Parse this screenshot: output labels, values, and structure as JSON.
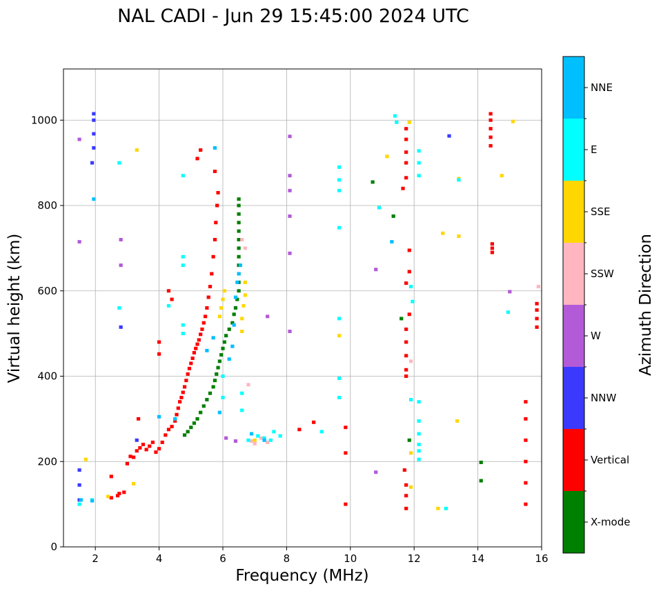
{
  "chart_data": {
    "type": "scatter",
    "title": "NAL CADI - Jun 29 15:45:00 2024 UTC",
    "xlabel": "Frequency (MHz)",
    "ylabel": "Virtual height (km)",
    "xlim": [
      1,
      16
    ],
    "ylim": [
      0,
      1120
    ],
    "xticks": [
      2,
      4,
      6,
      8,
      10,
      12,
      14,
      16
    ],
    "yticks": [
      0,
      200,
      400,
      600,
      800,
      1000
    ],
    "grid": true,
    "colorbar": {
      "label": "Azimuth Direction",
      "categories": [
        {
          "name": "X-mode",
          "color": "#008000"
        },
        {
          "name": "Vertical",
          "color": "#ff0000"
        },
        {
          "name": "NNW",
          "color": "#3a3aff"
        },
        {
          "name": "W",
          "color": "#b35ad8"
        },
        {
          "name": "SSW",
          "color": "#ffb6c1"
        },
        {
          "name": "SSE",
          "color": "#ffd700"
        },
        {
          "name": "E",
          "color": "#00ffff"
        },
        {
          "name": "NNE",
          "color": "#00bfff"
        }
      ]
    },
    "series": [
      {
        "name": "Vertical",
        "points": [
          [
            3.2,
            210
          ],
          [
            3.3,
            225
          ],
          [
            3.4,
            232
          ],
          [
            3.5,
            240
          ],
          [
            3.6,
            228
          ],
          [
            3.7,
            236
          ],
          [
            3.8,
            245
          ],
          [
            3.9,
            222
          ],
          [
            4.0,
            230
          ],
          [
            4.1,
            245
          ],
          [
            4.2,
            262
          ],
          [
            4.3,
            275
          ],
          [
            4.4,
            282
          ],
          [
            4.5,
            295
          ],
          [
            4.55,
            310
          ],
          [
            4.6,
            325
          ],
          [
            4.65,
            340
          ],
          [
            4.7,
            350
          ],
          [
            4.75,
            362
          ],
          [
            4.8,
            375
          ],
          [
            4.85,
            390
          ],
          [
            4.9,
            405
          ],
          [
            4.95,
            418
          ],
          [
            5.0,
            430
          ],
          [
            5.05,
            442
          ],
          [
            5.1,
            455
          ],
          [
            5.15,
            465
          ],
          [
            5.2,
            475
          ],
          [
            5.25,
            485
          ],
          [
            5.3,
            498
          ],
          [
            5.35,
            510
          ],
          [
            5.4,
            525
          ],
          [
            5.45,
            540
          ],
          [
            5.5,
            560
          ],
          [
            5.55,
            585
          ],
          [
            5.6,
            610
          ],
          [
            5.65,
            640
          ],
          [
            5.7,
            680
          ],
          [
            5.75,
            720
          ],
          [
            5.78,
            760
          ],
          [
            5.82,
            800
          ],
          [
            5.85,
            830
          ],
          [
            3.0,
            195
          ],
          [
            3.35,
            300
          ],
          [
            2.5,
            115
          ],
          [
            2.7,
            120
          ],
          [
            2.75,
            125
          ],
          [
            2.9,
            128
          ],
          [
            2.5,
            165
          ],
          [
            3.1,
            212
          ],
          [
            4.0,
            480
          ],
          [
            4.0,
            452
          ],
          [
            4.3,
            600
          ],
          [
            4.4,
            580
          ],
          [
            5.2,
            910
          ],
          [
            5.3,
            930
          ],
          [
            5.75,
            880
          ],
          [
            8.4,
            275
          ],
          [
            8.85,
            292
          ],
          [
            9.85,
            280
          ],
          [
            9.85,
            220
          ],
          [
            9.85,
            100
          ],
          [
            11.75,
            980
          ],
          [
            11.75,
            955
          ],
          [
            11.75,
            925
          ],
          [
            11.75,
            900
          ],
          [
            11.75,
            865
          ],
          [
            11.65,
            840
          ],
          [
            11.85,
            695
          ],
          [
            11.85,
            645
          ],
          [
            11.75,
            618
          ],
          [
            11.85,
            545
          ],
          [
            11.75,
            510
          ],
          [
            11.75,
            480
          ],
          [
            11.75,
            448
          ],
          [
            11.75,
            415
          ],
          [
            11.75,
            400
          ],
          [
            11.7,
            180
          ],
          [
            11.75,
            145
          ],
          [
            11.75,
            120
          ],
          [
            11.75,
            90
          ],
          [
            14.4,
            940
          ],
          [
            14.4,
            960
          ],
          [
            14.4,
            980
          ],
          [
            14.4,
            1000
          ],
          [
            14.4,
            1015
          ],
          [
            14.45,
            690
          ],
          [
            14.45,
            700
          ],
          [
            14.45,
            710
          ],
          [
            15.5,
            100
          ],
          [
            15.5,
            150
          ],
          [
            15.5,
            200
          ],
          [
            15.5,
            250
          ],
          [
            15.5,
            300
          ],
          [
            15.5,
            340
          ],
          [
            15.85,
            515
          ],
          [
            15.85,
            535
          ],
          [
            15.85,
            555
          ],
          [
            15.85,
            570
          ]
        ]
      },
      {
        "name": "X-mode",
        "points": [
          [
            4.8,
            262
          ],
          [
            4.9,
            270
          ],
          [
            5.0,
            280
          ],
          [
            5.1,
            290
          ],
          [
            5.2,
            300
          ],
          [
            5.3,
            315
          ],
          [
            5.4,
            330
          ],
          [
            5.5,
            345
          ],
          [
            5.6,
            360
          ],
          [
            5.7,
            375
          ],
          [
            5.75,
            390
          ],
          [
            5.8,
            405
          ],
          [
            5.85,
            420
          ],
          [
            5.9,
            435
          ],
          [
            5.95,
            450
          ],
          [
            6.0,
            465
          ],
          [
            6.05,
            480
          ],
          [
            6.1,
            495
          ],
          [
            6.2,
            510
          ],
          [
            6.3,
            525
          ],
          [
            6.35,
            545
          ],
          [
            6.4,
            560
          ],
          [
            6.45,
            580
          ],
          [
            6.5,
            600
          ],
          [
            6.5,
            620
          ],
          [
            6.5,
            640
          ],
          [
            6.5,
            660
          ],
          [
            6.5,
            680
          ],
          [
            6.5,
            700
          ],
          [
            6.5,
            720
          ],
          [
            6.5,
            740
          ],
          [
            6.5,
            760
          ],
          [
            6.5,
            780
          ],
          [
            6.5,
            800
          ],
          [
            6.5,
            815
          ],
          [
            10.7,
            855
          ],
          [
            11.35,
            775
          ],
          [
            11.6,
            535
          ],
          [
            11.85,
            250
          ],
          [
            14.1,
            198
          ],
          [
            14.1,
            155
          ]
        ]
      },
      {
        "name": "NNW",
        "points": [
          [
            1.5,
            180
          ],
          [
            1.5,
            145
          ],
          [
            1.5,
            110
          ],
          [
            1.9,
            900
          ],
          [
            1.95,
            935
          ],
          [
            1.95,
            968
          ],
          [
            1.95,
            1000
          ],
          [
            1.95,
            1015
          ],
          [
            2.8,
            515
          ],
          [
            3.3,
            250
          ],
          [
            13.1,
            963
          ]
        ]
      },
      {
        "name": "W",
        "points": [
          [
            1.5,
            955
          ],
          [
            1.5,
            715
          ],
          [
            2.8,
            720
          ],
          [
            2.8,
            660
          ],
          [
            6.1,
            255
          ],
          [
            6.4,
            248
          ],
          [
            7.4,
            540
          ],
          [
            8.1,
            962
          ],
          [
            8.1,
            870
          ],
          [
            8.1,
            835
          ],
          [
            8.1,
            775
          ],
          [
            8.1,
            688
          ],
          [
            8.1,
            505
          ],
          [
            10.8,
            650
          ],
          [
            10.8,
            175
          ],
          [
            15.0,
            598
          ]
        ]
      },
      {
        "name": "SSW",
        "points": [
          [
            6.6,
            720
          ],
          [
            6.7,
            700
          ],
          [
            6.7,
            620
          ],
          [
            6.8,
            380
          ],
          [
            6.9,
            248
          ],
          [
            7.0,
            242
          ],
          [
            7.2,
            255
          ],
          [
            7.4,
            245
          ],
          [
            11.9,
            435
          ],
          [
            15.9,
            610
          ]
        ]
      },
      {
        "name": "SSE",
        "points": [
          [
            1.7,
            205
          ],
          [
            2.4,
            118
          ],
          [
            3.2,
            148
          ],
          [
            3.3,
            930
          ],
          [
            5.9,
            540
          ],
          [
            5.95,
            560
          ],
          [
            6.0,
            580
          ],
          [
            6.05,
            600
          ],
          [
            6.6,
            505
          ],
          [
            6.6,
            535
          ],
          [
            6.65,
            565
          ],
          [
            6.7,
            590
          ],
          [
            6.7,
            620
          ],
          [
            7.0,
            250
          ],
          [
            9.65,
            495
          ],
          [
            11.15,
            915
          ],
          [
            11.85,
            995
          ],
          [
            11.9,
            220
          ],
          [
            11.9,
            140
          ],
          [
            12.75,
            90
          ],
          [
            12.9,
            735
          ],
          [
            13.35,
            295
          ],
          [
            13.4,
            728
          ],
          [
            13.4,
            863
          ],
          [
            14.75,
            870
          ],
          [
            15.1,
            997
          ]
        ]
      },
      {
        "name": "E",
        "points": [
          [
            1.5,
            100
          ],
          [
            1.9,
            110
          ],
          [
            2.75,
            900
          ],
          [
            2.75,
            560
          ],
          [
            4.3,
            565
          ],
          [
            4.75,
            520
          ],
          [
            4.75,
            500
          ],
          [
            4.75,
            680
          ],
          [
            4.75,
            660
          ],
          [
            4.75,
            870
          ],
          [
            6.0,
            400
          ],
          [
            6.0,
            350
          ],
          [
            6.6,
            320
          ],
          [
            6.6,
            360
          ],
          [
            6.8,
            250
          ],
          [
            7.1,
            260
          ],
          [
            7.3,
            255
          ],
          [
            7.5,
            250
          ],
          [
            7.6,
            270
          ],
          [
            7.8,
            260
          ],
          [
            9.1,
            270
          ],
          [
            9.65,
            890
          ],
          [
            9.65,
            860
          ],
          [
            9.65,
            835
          ],
          [
            9.65,
            748
          ],
          [
            9.65,
            535
          ],
          [
            9.65,
            395
          ],
          [
            9.65,
            350
          ],
          [
            10.9,
            795
          ],
          [
            11.4,
            1010
          ],
          [
            11.45,
            995
          ],
          [
            11.9,
            610
          ],
          [
            11.95,
            575
          ],
          [
            11.9,
            345
          ],
          [
            12.15,
            928
          ],
          [
            12.15,
            900
          ],
          [
            12.15,
            870
          ],
          [
            12.15,
            340
          ],
          [
            12.15,
            295
          ],
          [
            12.15,
            265
          ],
          [
            12.15,
            240
          ],
          [
            12.15,
            225
          ],
          [
            12.15,
            205
          ],
          [
            13.0,
            90
          ],
          [
            13.4,
            860
          ],
          [
            14.95,
            550
          ]
        ]
      },
      {
        "name": "NNE",
        "points": [
          [
            1.55,
            110
          ],
          [
            1.9,
            108
          ],
          [
            1.95,
            815
          ],
          [
            4.0,
            305
          ],
          [
            4.5,
            300
          ],
          [
            5.5,
            460
          ],
          [
            5.7,
            490
          ],
          [
            5.75,
            935
          ],
          [
            5.9,
            315
          ],
          [
            6.2,
            440
          ],
          [
            6.3,
            470
          ],
          [
            6.35,
            520
          ],
          [
            6.4,
            585
          ],
          [
            6.45,
            620
          ],
          [
            6.5,
            640
          ],
          [
            6.55,
            660
          ],
          [
            6.9,
            265
          ],
          [
            7.3,
            250
          ],
          [
            11.3,
            715
          ]
        ]
      }
    ]
  }
}
